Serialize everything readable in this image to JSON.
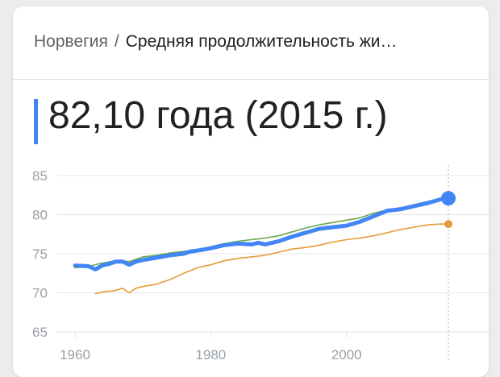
{
  "header": {
    "country": "Норвегия",
    "separator": "/",
    "title": "Средняя продолжительность жи…"
  },
  "summary": {
    "value": "82,10 года (2015 г.)"
  },
  "colors": {
    "primary_series": "#4285f4",
    "green_series": "#6aa84f",
    "orange_series": "#e69b3a",
    "grid": "#e4e4e4",
    "tick_text": "#9aa0a6"
  },
  "chart_data": {
    "type": "line",
    "title": "",
    "xlabel": "",
    "ylabel": "",
    "xlim": [
      1960,
      2015
    ],
    "ylim": [
      65,
      85
    ],
    "x_ticks": [
      1960,
      1980,
      2000
    ],
    "y_ticks": [
      85,
      80,
      75,
      70,
      65
    ],
    "grid": true,
    "legend": "none",
    "series": [
      {
        "color": "#4285f4",
        "points": [
          [
            1960,
            73.5
          ],
          [
            1962,
            73.4
          ],
          [
            1963,
            73.0
          ],
          [
            1964,
            73.5
          ],
          [
            1965,
            73.7
          ],
          [
            1966,
            74.0
          ],
          [
            1967,
            74.0
          ],
          [
            1968,
            73.6
          ],
          [
            1969,
            74.0
          ],
          [
            1970,
            74.2
          ],
          [
            1972,
            74.5
          ],
          [
            1974,
            74.8
          ],
          [
            1976,
            75.0
          ],
          [
            1977,
            75.3
          ],
          [
            1978,
            75.4
          ],
          [
            1980,
            75.7
          ],
          [
            1982,
            76.1
          ],
          [
            1984,
            76.3
          ],
          [
            1986,
            76.2
          ],
          [
            1987,
            76.4
          ],
          [
            1988,
            76.2
          ],
          [
            1990,
            76.6
          ],
          [
            1992,
            77.2
          ],
          [
            1994,
            77.7
          ],
          [
            1996,
            78.2
          ],
          [
            1998,
            78.4
          ],
          [
            2000,
            78.6
          ],
          [
            2002,
            79.1
          ],
          [
            2004,
            79.8
          ],
          [
            2006,
            80.5
          ],
          [
            2008,
            80.7
          ],
          [
            2010,
            81.1
          ],
          [
            2012,
            81.5
          ],
          [
            2014,
            82.0
          ],
          [
            2015,
            82.1
          ]
        ]
      },
      {
        "color": "#6aa84f",
        "points": [
          [
            1960,
            73.2
          ],
          [
            1962,
            73.4
          ],
          [
            1964,
            73.8
          ],
          [
            1966,
            74.1
          ],
          [
            1968,
            74.0
          ],
          [
            1970,
            74.6
          ],
          [
            1972,
            74.8
          ],
          [
            1974,
            75.1
          ],
          [
            1976,
            75.3
          ],
          [
            1978,
            75.5
          ],
          [
            1980,
            75.9
          ],
          [
            1982,
            76.3
          ],
          [
            1984,
            76.6
          ],
          [
            1986,
            76.8
          ],
          [
            1988,
            77.0
          ],
          [
            1990,
            77.3
          ],
          [
            1992,
            77.8
          ],
          [
            1994,
            78.3
          ],
          [
            1996,
            78.7
          ],
          [
            1998,
            79.0
          ],
          [
            2000,
            79.3
          ],
          [
            2002,
            79.6
          ],
          [
            2004,
            80.2
          ],
          [
            2006,
            80.6
          ],
          [
            2008,
            80.9
          ],
          [
            2010,
            81.3
          ],
          [
            2012,
            81.7
          ],
          [
            2014,
            82.1
          ],
          [
            2015,
            82.2
          ]
        ]
      },
      {
        "color": "#e69b3a",
        "points": [
          [
            1963,
            69.9
          ],
          [
            1964,
            70.1
          ],
          [
            1965,
            70.2
          ],
          [
            1966,
            70.3
          ],
          [
            1967,
            70.6
          ],
          [
            1968,
            70.0
          ],
          [
            1969,
            70.6
          ],
          [
            1970,
            70.8
          ],
          [
            1972,
            71.1
          ],
          [
            1974,
            71.7
          ],
          [
            1976,
            72.5
          ],
          [
            1978,
            73.2
          ],
          [
            1979,
            73.4
          ],
          [
            1980,
            73.6
          ],
          [
            1982,
            74.1
          ],
          [
            1984,
            74.4
          ],
          [
            1986,
            74.6
          ],
          [
            1988,
            74.8
          ],
          [
            1990,
            75.2
          ],
          [
            1992,
            75.6
          ],
          [
            1994,
            75.8
          ],
          [
            1996,
            76.1
          ],
          [
            1998,
            76.5
          ],
          [
            2000,
            76.8
          ],
          [
            2002,
            77.0
          ],
          [
            2004,
            77.3
          ],
          [
            2006,
            77.7
          ],
          [
            2008,
            78.1
          ],
          [
            2010,
            78.4
          ],
          [
            2012,
            78.7
          ],
          [
            2014,
            78.8
          ],
          [
            2015,
            78.8
          ]
        ]
      }
    ]
  }
}
